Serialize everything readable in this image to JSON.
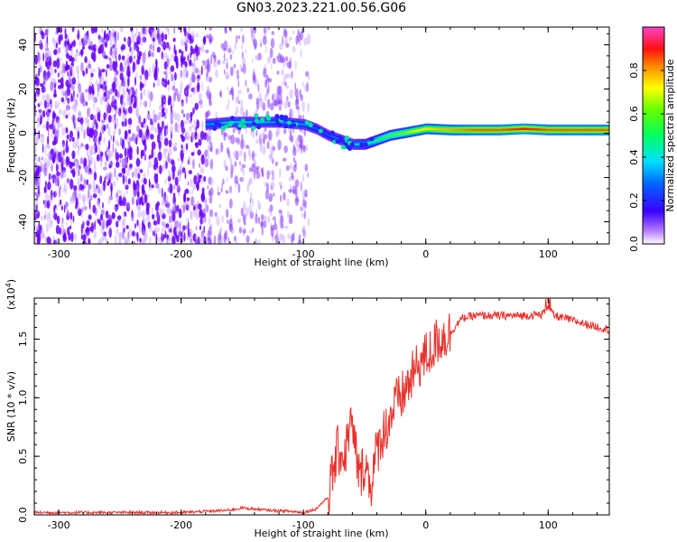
{
  "title": "GN03.2023.221.00.56.G06",
  "chart_data": [
    {
      "type": "heatmap",
      "xlabel": "Height of straight line (km)",
      "ylabel": "Frequency (Hz)",
      "xlim": [
        -320,
        150
      ],
      "ylim": [
        -50,
        48
      ],
      "x_ticks": [
        -300,
        -200,
        -100,
        0,
        100
      ],
      "y_ticks": [
        -40,
        -20,
        0,
        20,
        40
      ],
      "colorbar": {
        "label": "Normalized spectral amplitude",
        "range": [
          0,
          1
        ],
        "ticks": [
          "0.0",
          "0.2",
          "0.4",
          "0.6",
          "0.8"
        ],
        "tick_values": [
          0,
          0.2,
          0.4,
          0.6,
          0.8
        ]
      },
      "ridge": {
        "x": [
          -180,
          -160,
          -140,
          -120,
          -100,
          -90,
          -80,
          -70,
          -60,
          -50,
          -40,
          -30,
          -20,
          -10,
          0,
          20,
          40,
          60,
          80,
          100,
          120,
          150
        ],
        "frequency": [
          4,
          5,
          5,
          5,
          4,
          2,
          -1,
          -3,
          -5,
          -5,
          -3,
          -1,
          0,
          1,
          2,
          1.5,
          1.5,
          1.5,
          2,
          1.5,
          1.5,
          1.5
        ],
        "amplitude": [
          0.3,
          0.35,
          0.35,
          0.3,
          0.3,
          0.25,
          0.25,
          0.3,
          0.35,
          0.4,
          0.5,
          0.55,
          0.6,
          0.7,
          0.75,
          0.8,
          0.85,
          0.85,
          0.9,
          0.85,
          0.85,
          0.85
        ]
      },
      "noise_region": [
        -320,
        -95
      ]
    },
    {
      "type": "line",
      "xlabel": "Height of straight line (km)",
      "ylabel": "SNR (10 * v/v)",
      "scale_label": "(x10",
      "scale_exp": "4",
      "scale_close": ")",
      "xlim": [
        -320,
        150
      ],
      "ylim": [
        0,
        1.85
      ],
      "x_ticks": [
        -300,
        -200,
        -100,
        0,
        100
      ],
      "y_ticks": [
        0,
        0.5,
        1.0,
        1.5
      ],
      "y_tick_labels": [
        "0.0",
        "0.5",
        "1.0",
        "1.5"
      ],
      "color": "#e8302a",
      "series": [
        {
          "x": [
            -320,
            -250,
            -200,
            -160,
            -150,
            -130,
            -110,
            -100,
            -90,
            -80,
            -72,
            -66,
            -62,
            -58,
            -54,
            -50,
            -45,
            -40,
            -35,
            -30,
            -25,
            -20,
            -15,
            -10,
            -5,
            0,
            5,
            10,
            15,
            20,
            25,
            30,
            40,
            50,
            60,
            80,
            95,
            100,
            105,
            120,
            130,
            150
          ],
          "y": [
            0.02,
            0.02,
            0.02,
            0.04,
            0.06,
            0.04,
            0.03,
            0.02,
            0.05,
            0.15,
            0.55,
            0.5,
            0.8,
            0.6,
            0.3,
            0.45,
            0.25,
            0.55,
            0.7,
            0.8,
            0.95,
            1.0,
            1.1,
            1.2,
            1.3,
            1.35,
            1.4,
            1.5,
            1.52,
            1.55,
            1.62,
            1.68,
            1.7,
            1.7,
            1.7,
            1.7,
            1.71,
            1.78,
            1.7,
            1.66,
            1.63,
            1.58
          ]
        }
      ]
    }
  ]
}
